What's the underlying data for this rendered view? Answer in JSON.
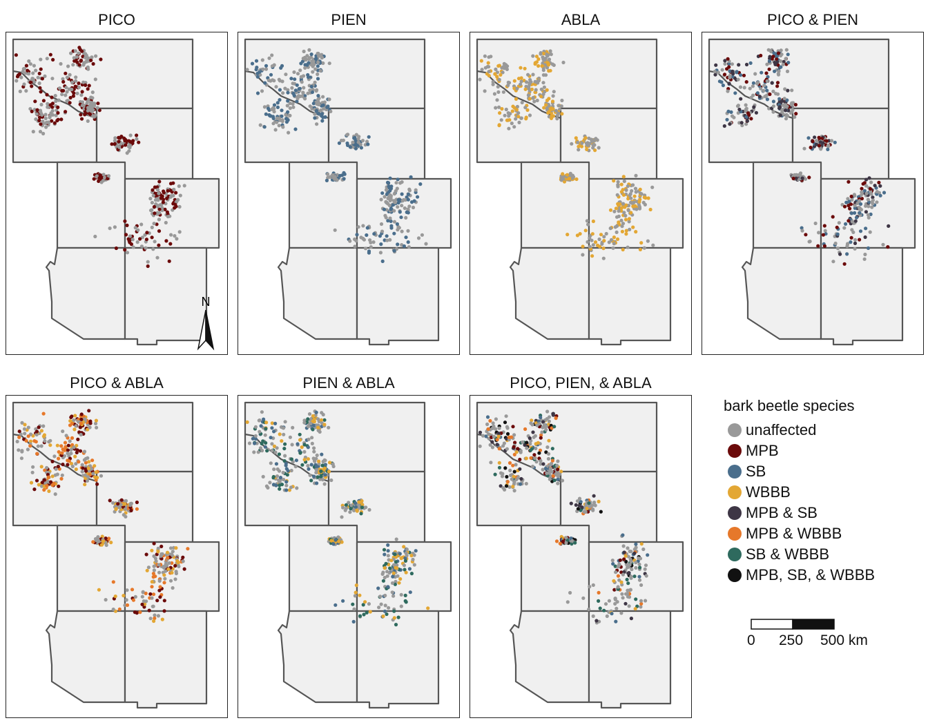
{
  "panels": [
    {
      "title": "PICO",
      "categories": [
        "unaffected",
        "MPB"
      ],
      "north_arrow": true
    },
    {
      "title": "PIEN",
      "categories": [
        "unaffected",
        "SB"
      ],
      "north_arrow": false
    },
    {
      "title": "ABLA",
      "categories": [
        "unaffected",
        "WBBB"
      ],
      "north_arrow": false
    },
    {
      "title": "PICO & PIEN",
      "categories": [
        "unaffected",
        "MPB",
        "SB",
        "MPB & SB"
      ],
      "north_arrow": false
    },
    {
      "title": "PICO & ABLA",
      "categories": [
        "unaffected",
        "MPB",
        "WBBB",
        "MPB & WBBB"
      ],
      "north_arrow": false
    },
    {
      "title": "PIEN & ABLA",
      "categories": [
        "unaffected",
        "SB",
        "WBBB",
        "SB & WBBB"
      ],
      "north_arrow": false
    },
    {
      "title": "PICO, PIEN, & ABLA",
      "categories": [
        "unaffected",
        "MPB",
        "SB",
        "WBBB",
        "MPB & SB",
        "MPB & WBBB",
        "SB & WBBB",
        "MPB, SB, & WBBB"
      ],
      "north_arrow": false
    }
  ],
  "north_label": "N",
  "legend": {
    "title": "bark beetle species",
    "items": [
      {
        "label": "unaffected",
        "color": "#999999"
      },
      {
        "label": "MPB",
        "color": "#6B0A0A"
      },
      {
        "label": "SB",
        "color": "#4A6E8C"
      },
      {
        "label": "WBBB",
        "color": "#E3A734"
      },
      {
        "label": "MPB & SB",
        "color": "#3E3645"
      },
      {
        "label": "MPB & WBBB",
        "color": "#E6782A"
      },
      {
        "label": "SB & WBBB",
        "color": "#2E6A5E"
      },
      {
        "label": "MPB, SB, & WBBB",
        "color": "#111111"
      }
    ]
  },
  "scale_bar": {
    "labels": [
      "0",
      "250",
      "500 km"
    ]
  },
  "colors": {
    "state_fill": "#F0F0F0",
    "state_border": "#555555"
  }
}
